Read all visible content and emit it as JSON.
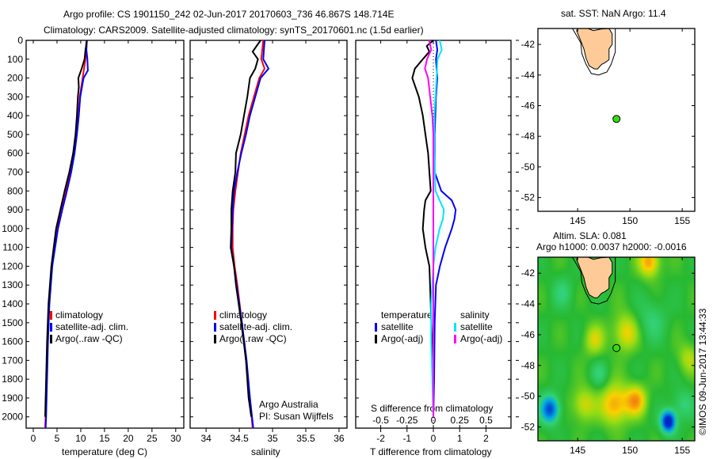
{
  "title": {
    "line1": "Argo profile: CS 1901150_242 02-Jun-2017 20170603_736 46.867S 148.714E",
    "line2": "Climatology: CARS2009. Satellite-adjusted climatology: synTS_20170601.nc (1.5d earlier)"
  },
  "copyright": "©IMOS 09-Jun-2017 13:44:33",
  "colors": {
    "climatology": "#ff0000",
    "satellite": "#0000ff",
    "argo": "#000000",
    "sal_satellite": "#00e5ff",
    "sal_argo": "#ff00ff",
    "land": "#fecb98",
    "float": "#33dd11"
  },
  "chart_data": [
    {
      "type": "line",
      "id": "temperature",
      "xlabel": "temperature (deg C)",
      "ylabel": "",
      "xlim": [
        -1.5,
        31.7
      ],
      "ylim": [
        0,
        2060
      ],
      "y_reversed": true,
      "xticks": [
        0,
        5,
        10,
        15,
        20,
        25,
        30
      ],
      "yticks": [
        0,
        100,
        200,
        300,
        400,
        500,
        600,
        700,
        800,
        900,
        1000,
        1100,
        1200,
        1300,
        1400,
        1500,
        1600,
        1700,
        1800,
        1900,
        2000
      ],
      "legend": {
        "placement": "bottom-center",
        "items": [
          "climatology",
          "satellite-adj. clim.",
          "Argo(..raw -QC)"
        ]
      },
      "series": [
        {
          "name": "climatology",
          "color": "#ff0000",
          "depth": [
            0,
            100,
            200,
            300,
            400,
            500,
            600,
            700,
            800,
            900,
            1000,
            1200,
            1400,
            1600,
            1800,
            2000,
            2060
          ],
          "values": [
            11.2,
            11.0,
            10.4,
            9.8,
            9.5,
            9.1,
            8.6,
            7.9,
            6.9,
            5.9,
            5.0,
            3.9,
            3.3,
            3.0,
            2.8,
            2.6,
            2.5
          ]
        },
        {
          "name": "satellite-adj. clim.",
          "color": "#0000ff",
          "depth": [
            0,
            50,
            100,
            160,
            200,
            300,
            400,
            500,
            600,
            700,
            800,
            900,
            1000,
            1200,
            1400,
            1600,
            1800,
            2000,
            2060
          ],
          "values": [
            11.3,
            11.2,
            11.4,
            11.5,
            10.6,
            9.9,
            9.6,
            9.2,
            8.7,
            8.0,
            7.1,
            6.1,
            5.2,
            4.0,
            3.4,
            3.1,
            2.9,
            2.7,
            2.6
          ]
        },
        {
          "name": "Argo(..raw -QC)",
          "color": "#000000",
          "depth": [
            0,
            50,
            100,
            150,
            200,
            250,
            300,
            400,
            500,
            600,
            700,
            800,
            900,
            1000,
            1200,
            1400,
            1600,
            1800,
            2000
          ],
          "values": [
            11.3,
            11.0,
            10.8,
            10.2,
            9.5,
            9.6,
            9.4,
            9.2,
            8.9,
            8.4,
            7.6,
            6.6,
            5.7,
            4.8,
            3.8,
            3.2,
            2.9,
            2.7,
            2.5
          ]
        }
      ]
    },
    {
      "type": "line",
      "id": "salinity",
      "xlabel": "salinity",
      "ylabel": "",
      "xlim": [
        33.76,
        36.12
      ],
      "ylim": [
        0,
        2060
      ],
      "y_reversed": true,
      "xticks": [
        34,
        34.5,
        35,
        35.5,
        36
      ],
      "legend": {
        "placement": "bottom-center",
        "items": [
          "climatology",
          "satellite-adj. clim.",
          "Argo(..raw -QC)"
        ]
      },
      "annotation": [
        "Argo Australia",
        "PI: Susan Wijffels"
      ],
      "series": [
        {
          "name": "climatology",
          "color": "#ff0000",
          "depth": [
            0,
            100,
            150,
            200,
            300,
            400,
            500,
            600,
            700,
            800,
            900,
            1000,
            1100,
            1200,
            1300,
            1500,
            1700,
            1900,
            2060
          ],
          "values": [
            34.86,
            34.83,
            34.88,
            34.8,
            34.72,
            34.64,
            34.58,
            34.52,
            34.48,
            34.44,
            34.41,
            34.4,
            34.4,
            34.43,
            34.47,
            34.54,
            34.6,
            34.66,
            34.7
          ]
        },
        {
          "name": "satellite-adj. clim.",
          "color": "#0000ff",
          "depth": [
            0,
            100,
            150,
            200,
            300,
            400,
            500,
            600,
            700,
            800,
            900,
            1000,
            1100,
            1200,
            1300,
            1500,
            1700,
            1900,
            2060
          ],
          "values": [
            34.88,
            34.86,
            34.94,
            34.82,
            34.74,
            34.66,
            34.6,
            34.53,
            34.47,
            34.42,
            34.4,
            34.39,
            34.38,
            34.42,
            34.46,
            34.54,
            34.61,
            34.66,
            34.71
          ]
        },
        {
          "name": "Argo(..raw -QC)",
          "color": "#000000",
          "depth": [
            0,
            60,
            100,
            150,
            200,
            300,
            400,
            500,
            600,
            700,
            800,
            900,
            1000,
            1100,
            1200,
            1300,
            1500,
            1700,
            1900,
            2000
          ],
          "values": [
            34.82,
            34.7,
            34.78,
            34.74,
            34.66,
            34.62,
            34.57,
            34.52,
            34.45,
            34.44,
            34.4,
            34.38,
            34.38,
            34.37,
            34.42,
            34.45,
            34.53,
            34.6,
            34.64,
            34.68
          ]
        }
      ]
    },
    {
      "type": "line",
      "id": "difference",
      "xlabel": "T difference from climatology",
      "x2label": "S difference from climatology",
      "xlim": [
        -2.95,
        2.95
      ],
      "ylim": [
        0,
        2060
      ],
      "y_reversed": true,
      "xticks": [
        -2,
        -1,
        0,
        1,
        2
      ],
      "x2ticks": [
        -0.5,
        -0.25,
        0,
        0.25,
        0.5
      ],
      "x2_scale": 4,
      "legend": {
        "placement": "bottom",
        "temperature_title": "temperature",
        "salinity_title": "salinity",
        "items": [
          "satellite",
          "Argo(-adj)",
          "satellite",
          "Argo(-adj)"
        ]
      },
      "series": [
        {
          "name": "temperature satellite",
          "quantity": "T",
          "color": "#0000ff",
          "depth": [
            0,
            50,
            100,
            200,
            300,
            500,
            700,
            800,
            850,
            900,
            950,
            1000,
            1100,
            1200,
            1300,
            1500,
            1800,
            2000
          ],
          "values": [
            0.1,
            0.15,
            0.1,
            0.15,
            0.1,
            0.05,
            0.05,
            0.3,
            0.7,
            0.85,
            0.8,
            0.7,
            0.45,
            0.25,
            0.1,
            0.05,
            0.03,
            0.0
          ]
        },
        {
          "name": "temperature Argo(-adj)",
          "quantity": "T",
          "color": "#000000",
          "depth": [
            0,
            30,
            60,
            100,
            150,
            200,
            300,
            400,
            500,
            600,
            700,
            800,
            850,
            900,
            1000,
            1100,
            1200,
            1400,
            1600,
            1800,
            2000
          ],
          "values": [
            0.0,
            -0.25,
            -0.15,
            -0.4,
            -0.7,
            -0.8,
            -0.55,
            -0.4,
            -0.3,
            -0.2,
            -0.15,
            -0.1,
            -0.3,
            -0.35,
            -0.4,
            -0.3,
            -0.15,
            -0.1,
            -0.05,
            0.0,
            0.0
          ]
        },
        {
          "name": "salinity satellite",
          "quantity": "S",
          "color": "#00e5ff",
          "depth": [
            0,
            50,
            100,
            200,
            300,
            400,
            600,
            800,
            850,
            900,
            950,
            1000,
            1100,
            1200,
            1400,
            1600,
            1800,
            2000
          ],
          "values": [
            0.06,
            0.08,
            0.04,
            0.03,
            0.02,
            0.01,
            0.01,
            0.02,
            0.06,
            0.1,
            0.09,
            0.06,
            0.02,
            0.0,
            -0.02,
            -0.02,
            -0.01,
            0.0
          ]
        },
        {
          "name": "salinity Argo(-adj)",
          "quantity": "S",
          "color": "#ff00ff",
          "depth": [
            0,
            50,
            100,
            150,
            200,
            300,
            400,
            500,
            700,
            900,
            1100,
            1300,
            1500,
            1800,
            2000
          ],
          "values": [
            -0.04,
            -0.02,
            -0.06,
            -0.08,
            -0.05,
            -0.03,
            -0.01,
            0.0,
            0.0,
            0.0,
            0.0,
            0.0,
            0.0,
            0.0,
            0.0
          ]
        }
      ]
    },
    {
      "type": "map",
      "id": "sst-map",
      "title": "sat. SST: NaN Argo: 11.4",
      "xlim": [
        141.2,
        156.2
      ],
      "ylim": [
        -52.9,
        -40.96
      ],
      "xticks": [
        145,
        150,
        155
      ],
      "yticks": [
        -42,
        -44,
        -46,
        -48,
        -50,
        -52
      ],
      "float": {
        "lon": 148.714,
        "lat": -46.867
      }
    },
    {
      "type": "heatmap",
      "id": "sla-map",
      "title": "Altim. SLA: 0.081",
      "subtitle": "Argo h1000: 0.0037 h2000: -0.0016",
      "xlim": [
        141.2,
        156.2
      ],
      "ylim": [
        -52.9,
        -40.96
      ],
      "xticks": [
        145,
        150,
        155
      ],
      "yticks": [
        -42,
        -44,
        -46,
        -48,
        -50,
        -52
      ],
      "float": {
        "lon": 148.714,
        "lat": -46.867
      }
    }
  ]
}
